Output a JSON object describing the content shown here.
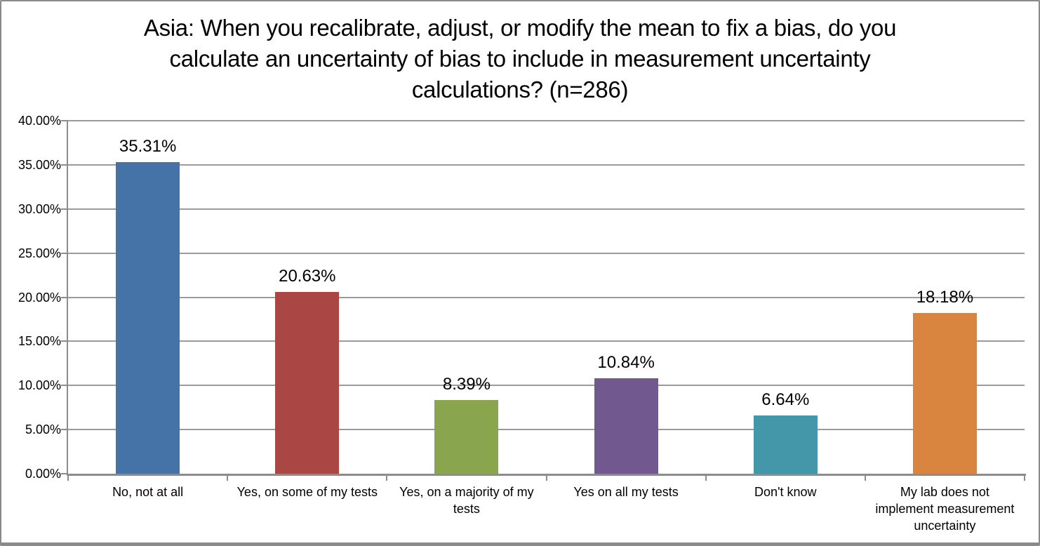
{
  "frame": {
    "background": "#FFFFFF",
    "border_color": "#8A8A8A"
  },
  "chart_data": {
    "type": "bar",
    "title": "Asia: When you recalibrate, adjust, or modify the mean to fix a bias, do you calculate an uncertainty of bias to include in measurement uncertainty calculations? (n=286)",
    "categories": [
      "No, not at all",
      "Yes, on some of my tests",
      "Yes, on a majority of my tests",
      "Yes on all my tests",
      "Don't know",
      "My lab does not implement measurement uncertainty"
    ],
    "values": [
      35.31,
      20.63,
      8.39,
      10.84,
      6.64,
      18.18
    ],
    "data_labels": [
      "35.31%",
      "20.63%",
      "8.39%",
      "10.84%",
      "6.64%",
      "18.18%"
    ],
    "bar_colors": [
      "#4572A7",
      "#AA4643",
      "#89A54E",
      "#71588F",
      "#4497A9",
      "#D9843F"
    ],
    "y_ticks": [
      "0.00%",
      "5.00%",
      "10.00%",
      "15.00%",
      "20.00%",
      "25.00%",
      "30.00%",
      "35.00%",
      "40.00%"
    ],
    "ylim": [
      0,
      40
    ],
    "xlabel": "",
    "ylabel": "",
    "grid": true,
    "legend": false,
    "gridline_color": "#9B9B9B",
    "axis_color": "#8C8C8C",
    "text_color": "#000000"
  }
}
